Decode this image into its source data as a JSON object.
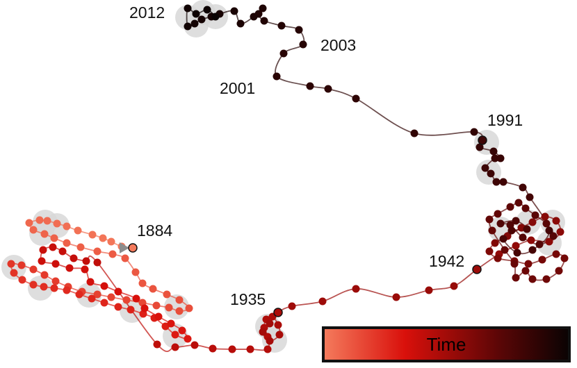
{
  "colors": {
    "time_start": "#f47a5c",
    "time_mid": "#d9100b",
    "time_end": "#0b0303",
    "halo": "#d8d8d8",
    "arrow": "#8c8c8c"
  },
  "year_labels": [
    {
      "name": "year-label-2012",
      "text": "2012"
    },
    {
      "name": "year-label-2003",
      "text": "2003"
    },
    {
      "name": "year-label-2001",
      "text": "2001"
    },
    {
      "name": "year-label-1991",
      "text": "1991"
    },
    {
      "name": "year-label-1884",
      "text": "1884"
    },
    {
      "name": "year-label-1942",
      "text": "1942"
    },
    {
      "name": "year-label-1935",
      "text": "1935"
    }
  ],
  "legend": {
    "label": "Time"
  }
}
